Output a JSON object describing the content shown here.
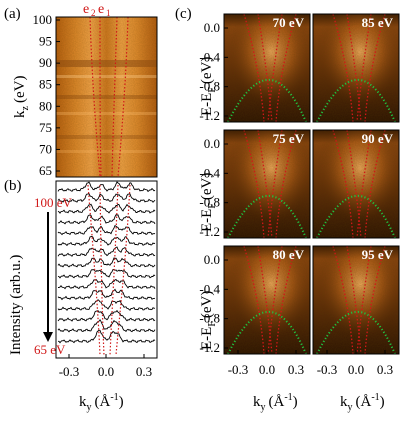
{
  "figure": {
    "panel_a": {
      "label": "(a)",
      "ylabel_main": "k",
      "ylabel_sub": "z",
      "ylabel_unit": "(eV)",
      "yticks": [
        "100",
        "95",
        "90",
        "85",
        "80",
        "75",
        "70",
        "65"
      ],
      "band_labels": [
        "e",
        "2",
        "e",
        "1"
      ]
    },
    "panel_b": {
      "label": "(b)",
      "ylabel": "Intensity (arb.u.)",
      "top_label": "100 eV",
      "bottom_label": "65 eV",
      "xticks": [
        "-0.3",
        "0.0",
        "0.3"
      ],
      "xlabel_main": "k",
      "xlabel_sub": "y",
      "xlabel_unit": "(Å",
      "xlabel_exp": "-1",
      "xlabel_close": ")"
    },
    "panel_c": {
      "label": "(c)",
      "ylabel_main": "E-E",
      "ylabel_sub": "F",
      "ylabel_unit": "(eV)",
      "yticks": [
        "0.0",
        "-0.4",
        "-0.8",
        "-1.2"
      ],
      "xticks": [
        "-0.3",
        "0.0",
        "0.3"
      ],
      "xlabel_main": "k",
      "xlabel_sub": "y",
      "xlabel_unit": "(Å",
      "xlabel_exp": "-1",
      "xlabel_close": ")",
      "photon_energies": [
        "70 eV",
        "85 eV",
        "75 eV",
        "90 eV",
        "80 eV",
        "95 eV"
      ]
    },
    "colors": {
      "map_dark": "#1e0c00",
      "map_mid": "#b85a10",
      "map_bright": "#ffb060",
      "red_guide": "#d01818",
      "green_guide": "#20c040"
    }
  }
}
